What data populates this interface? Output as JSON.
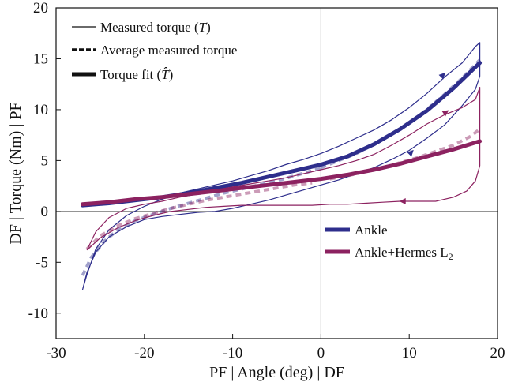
{
  "chart_data": {
    "type": "line",
    "xlabel": "PF | Angle (deg) | DF",
    "ylabel": "DF | Torque (Nm) | PF",
    "xlim": [
      -30,
      20
    ],
    "ylim": [
      -12.5,
      20
    ],
    "xticks": [
      -30,
      -20,
      -10,
      0,
      10,
      20
    ],
    "yticks": [
      -10,
      -5,
      0,
      5,
      10,
      15,
      20
    ],
    "xtick_labels": [
      "-30",
      "-20",
      "-10",
      "0",
      "10",
      "20"
    ],
    "ytick_labels": [
      "-10",
      "-5",
      "0",
      "5",
      "10",
      "15",
      "20"
    ],
    "grid": false,
    "zero_lines": true,
    "style_legend": {
      "placement": "top-left",
      "entries": [
        {
          "label": "Measured torque (",
          "math": "T",
          "suffix": ")",
          "style": "thin-solid"
        },
        {
          "label": "Average measured torque",
          "math": "",
          "suffix": "",
          "style": "dashed"
        },
        {
          "label": "Torque fit (",
          "math": "T̂",
          "suffix": ")",
          "style": "thick-solid"
        }
      ]
    },
    "condition_legend": {
      "placement": "lower-right",
      "entries": [
        {
          "label": "Ankle",
          "subscript": "",
          "color": "#2e2e8c"
        },
        {
          "label": "Ankle+Hermes L",
          "subscript": "2",
          "color": "#8c2260"
        }
      ]
    },
    "series": [
      {
        "name": "Ankle",
        "color": "#2e2e8c",
        "measured_loop": [
          [
            -27,
            -7.7
          ],
          [
            -26.5,
            -6
          ],
          [
            -25.5,
            -4
          ],
          [
            -24,
            -2.5
          ],
          [
            -22,
            -1.5
          ],
          [
            -20,
            -0.8
          ],
          [
            -18,
            -0.5
          ],
          [
            -16,
            -0.3
          ],
          [
            -14,
            -0.1
          ],
          [
            -12,
            0
          ],
          [
            -10,
            0.3
          ],
          [
            -8,
            0.7
          ],
          [
            -6,
            1.1
          ],
          [
            -4,
            1.6
          ],
          [
            -2,
            2.1
          ],
          [
            0,
            2.6
          ],
          [
            2,
            3.1
          ],
          [
            4,
            3.7
          ],
          [
            6,
            4.3
          ],
          [
            8,
            5.1
          ],
          [
            10,
            6
          ],
          [
            12,
            7.2
          ],
          [
            14,
            8.5
          ],
          [
            16,
            10.4
          ],
          [
            17.5,
            12
          ],
          [
            18,
            13.3
          ],
          [
            18,
            16.6
          ],
          [
            17.5,
            16.2
          ],
          [
            16,
            14.6
          ],
          [
            14,
            13.2
          ],
          [
            12,
            11.6
          ],
          [
            10,
            10.2
          ],
          [
            8,
            9
          ],
          [
            6,
            8
          ],
          [
            4,
            7.2
          ],
          [
            2,
            6.4
          ],
          [
            0,
            5.7
          ],
          [
            -2,
            5.1
          ],
          [
            -4,
            4.6
          ],
          [
            -6,
            4
          ],
          [
            -8,
            3.5
          ],
          [
            -10,
            3
          ],
          [
            -12,
            2.6
          ],
          [
            -14,
            2.2
          ],
          [
            -16,
            1.8
          ],
          [
            -18,
            1.2
          ],
          [
            -20,
            0.5
          ],
          [
            -22,
            -0.4
          ],
          [
            -24,
            -1.8
          ],
          [
            -25.5,
            -3.7
          ],
          [
            -26.5,
            -6.2
          ],
          [
            -27,
            -7.7
          ]
        ],
        "average": [
          [
            -27,
            -6.3
          ],
          [
            -26,
            -4.5
          ],
          [
            -24.5,
            -2.9
          ],
          [
            -23,
            -1.8
          ],
          [
            -21,
            -0.9
          ],
          [
            -19,
            -0.3
          ],
          [
            -17,
            0.3
          ],
          [
            -15,
            0.8
          ],
          [
            -13,
            1.3
          ],
          [
            -11,
            1.8
          ],
          [
            -9,
            2.2
          ],
          [
            -7,
            2.6
          ],
          [
            -5,
            3
          ],
          [
            -3,
            3.5
          ],
          [
            -1,
            4
          ],
          [
            0,
            4.3
          ],
          [
            2,
            5
          ],
          [
            4,
            5.7
          ],
          [
            6,
            6.6
          ],
          [
            8,
            7.6
          ],
          [
            10,
            8.7
          ],
          [
            12,
            10
          ],
          [
            14,
            11.5
          ],
          [
            16,
            13.1
          ],
          [
            18,
            14.9
          ]
        ],
        "fit": [
          [
            -27,
            0.6
          ],
          [
            -24,
            0.8
          ],
          [
            -21,
            1.1
          ],
          [
            -18,
            1.4
          ],
          [
            -15,
            1.8
          ],
          [
            -12,
            2.3
          ],
          [
            -9,
            2.8
          ],
          [
            -6,
            3.4
          ],
          [
            -3,
            4
          ],
          [
            0,
            4.6
          ],
          [
            3,
            5.4
          ],
          [
            6,
            6.6
          ],
          [
            9,
            8.1
          ],
          [
            12,
            9.9
          ],
          [
            15,
            12.1
          ],
          [
            18,
            14.6
          ]
        ]
      },
      {
        "name": "Ankle+Hermes L2",
        "color": "#8c2260",
        "measured_loop": [
          [
            -26.5,
            -3.8
          ],
          [
            -25,
            -2.6
          ],
          [
            -23,
            -1.6
          ],
          [
            -21,
            -0.9
          ],
          [
            -19,
            -0.4
          ],
          [
            -17,
            0
          ],
          [
            -15,
            0.2
          ],
          [
            -13,
            0.4
          ],
          [
            -11,
            0.5
          ],
          [
            -9,
            0.6
          ],
          [
            -7,
            0.6
          ],
          [
            -5,
            0.6
          ],
          [
            -3,
            0.6
          ],
          [
            -1,
            0.6
          ],
          [
            1,
            0.7
          ],
          [
            3,
            0.7
          ],
          [
            5,
            0.8
          ],
          [
            7,
            0.9
          ],
          [
            9,
            1
          ],
          [
            11,
            1
          ],
          [
            13,
            1
          ],
          [
            15,
            1.4
          ],
          [
            16.5,
            2
          ],
          [
            17.5,
            3
          ],
          [
            18,
            4.5
          ],
          [
            18,
            12.2
          ],
          [
            17.5,
            11
          ],
          [
            16,
            10.2
          ],
          [
            14,
            9.5
          ],
          [
            12,
            8.6
          ],
          [
            10,
            7.5
          ],
          [
            8,
            6.5
          ],
          [
            6,
            5.6
          ],
          [
            4,
            5
          ],
          [
            2,
            4.5
          ],
          [
            0,
            4.1
          ],
          [
            -2,
            3.7
          ],
          [
            -4,
            3.3
          ],
          [
            -6,
            3
          ],
          [
            -8,
            2.7
          ],
          [
            -10,
            2.4
          ],
          [
            -12,
            2.1
          ],
          [
            -14,
            1.7
          ],
          [
            -16,
            1.4
          ],
          [
            -18,
            1
          ],
          [
            -20,
            0.7
          ],
          [
            -22,
            0.3
          ],
          [
            -24,
            -0.6
          ],
          [
            -25.5,
            -2
          ],
          [
            -26.5,
            -3.8
          ]
        ],
        "average": [
          [
            -26.5,
            -3.7
          ],
          [
            -25,
            -2.4
          ],
          [
            -23,
            -1.4
          ],
          [
            -21,
            -0.7
          ],
          [
            -19,
            -0.2
          ],
          [
            -17,
            0.3
          ],
          [
            -15,
            0.7
          ],
          [
            -13,
            1.1
          ],
          [
            -11,
            1.4
          ],
          [
            -9,
            1.7
          ],
          [
            -7,
            2
          ],
          [
            -5,
            2.3
          ],
          [
            -3,
            2.6
          ],
          [
            -1,
            2.8
          ],
          [
            1,
            3.2
          ],
          [
            3,
            3.5
          ],
          [
            5,
            3.9
          ],
          [
            7,
            4.3
          ],
          [
            9,
            4.8
          ],
          [
            11,
            5.3
          ],
          [
            13,
            5.9
          ],
          [
            15,
            6.5
          ],
          [
            17,
            7.4
          ],
          [
            18,
            8.1
          ]
        ],
        "fit": [
          [
            -27,
            0.7
          ],
          [
            -24,
            0.9
          ],
          [
            -21,
            1.2
          ],
          [
            -18,
            1.4
          ],
          [
            -15,
            1.7
          ],
          [
            -12,
            2
          ],
          [
            -9,
            2.3
          ],
          [
            -6,
            2.6
          ],
          [
            -3,
            2.9
          ],
          [
            0,
            3.2
          ],
          [
            3,
            3.6
          ],
          [
            6,
            4.1
          ],
          [
            9,
            4.7
          ],
          [
            12,
            5.4
          ],
          [
            15,
            6.1
          ],
          [
            18,
            6.9
          ]
        ]
      }
    ]
  }
}
